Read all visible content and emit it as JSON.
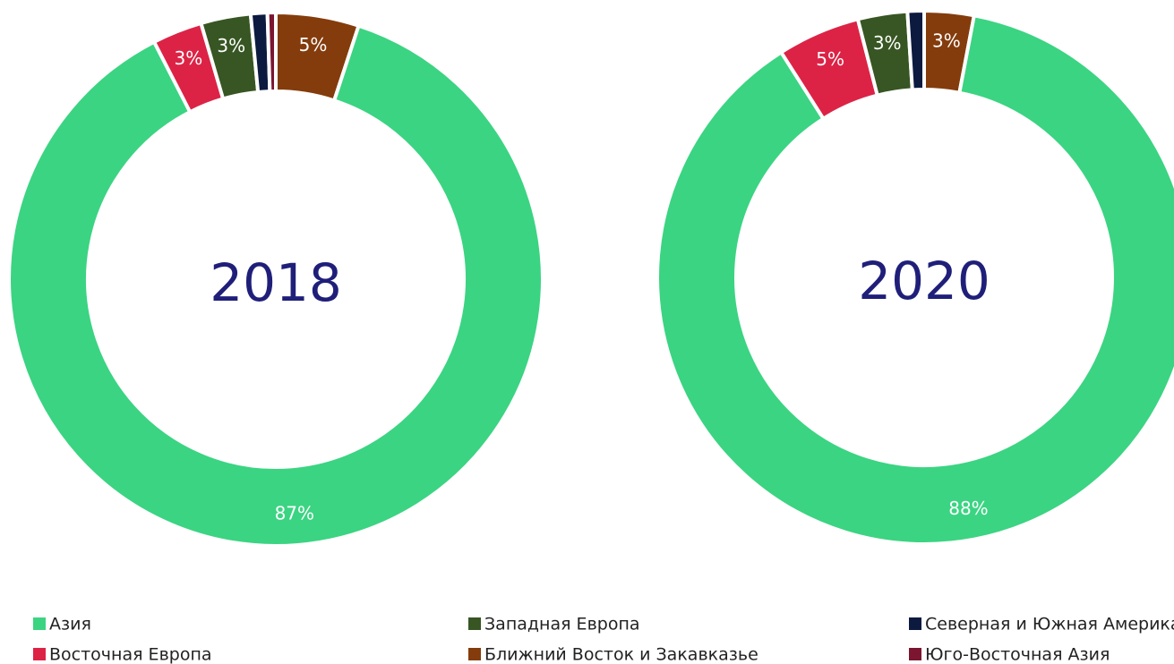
{
  "chart_data": [
    {
      "type": "donut",
      "title": "2018",
      "categories": [
        "Азия",
        "Восточная Европа",
        "Западная Европа",
        "Ближний Восток и Закавказье",
        "Северная и Южная Америка",
        "Юго-Восточная Азия"
      ],
      "values": [
        87,
        3,
        3,
        5,
        1,
        0.5
      ],
      "value_labels": [
        "87%",
        "3%",
        "3%",
        "5%",
        null,
        null
      ],
      "colors": [
        "#3bd482",
        "#dc2346",
        "#375623",
        "#843c0c",
        "#0c1a40",
        "#7b1530"
      ]
    },
    {
      "type": "donut",
      "title": "2020",
      "categories": [
        "Азия",
        "Восточная Европа",
        "Западная Европа",
        "Ближний Восток и Закавказье",
        "Северная и Южная Америка",
        "Юго-Восточная Азия"
      ],
      "values": [
        88,
        5,
        3,
        3,
        1,
        0
      ],
      "value_labels": [
        "88%",
        "5%",
        "3%",
        "3%",
        null,
        null
      ],
      "colors": [
        "#3bd482",
        "#dc2346",
        "#375623",
        "#843c0c",
        "#0c1a40",
        "#7b1530"
      ]
    }
  ]
}
